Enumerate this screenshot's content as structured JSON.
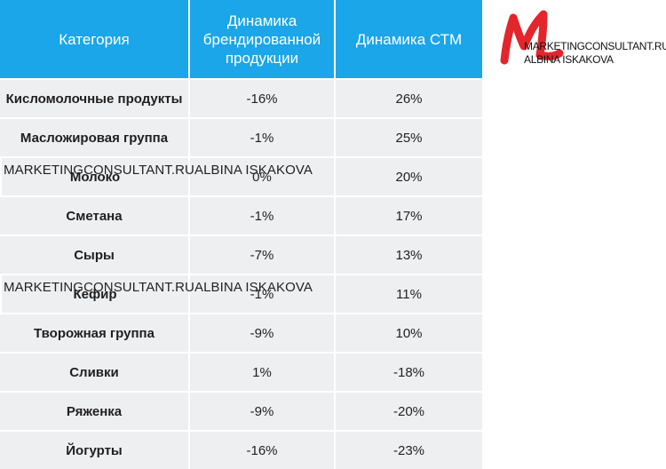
{
  "table": {
    "headers": [
      "Категория",
      "Динамика брендированной продукции",
      "Динамика СТМ"
    ],
    "rows": [
      {
        "category": "Кисломолочные продукты",
        "brand": "-16%",
        "stm": "26%"
      },
      {
        "category": "Масложировая группа",
        "brand": "-1%",
        "stm": "25%"
      },
      {
        "category": "Молоко",
        "brand": "0%",
        "stm": "20%"
      },
      {
        "category": "Сметана",
        "brand": "-1%",
        "stm": "17%"
      },
      {
        "category": "Сыры",
        "brand": "-7%",
        "stm": "13%"
      },
      {
        "category": "Кефир",
        "brand": "-1%",
        "stm": "11%"
      },
      {
        "category": "Творожная группа",
        "brand": "-9%",
        "stm": "10%"
      },
      {
        "category": "Сливки",
        "brand": "1%",
        "stm": "-18%"
      },
      {
        "category": "Ряженка",
        "brand": "-9%",
        "stm": "-20%"
      },
      {
        "category": "Йогурты",
        "brand": "-16%",
        "stm": "-23%"
      }
    ]
  },
  "watermark": {
    "line1": "MARKETINGCONSULTANT.RU",
    "line2": "ALBINA ISKAKOVA"
  },
  "logo": {
    "line1": "MARKETINGCONSULTANT.RU",
    "line2": "ALBINA ISKAKOVA",
    "color": "#e3262c"
  },
  "colors": {
    "header_bg": "#1aa6e8",
    "row_bg": "#eeeff1"
  }
}
